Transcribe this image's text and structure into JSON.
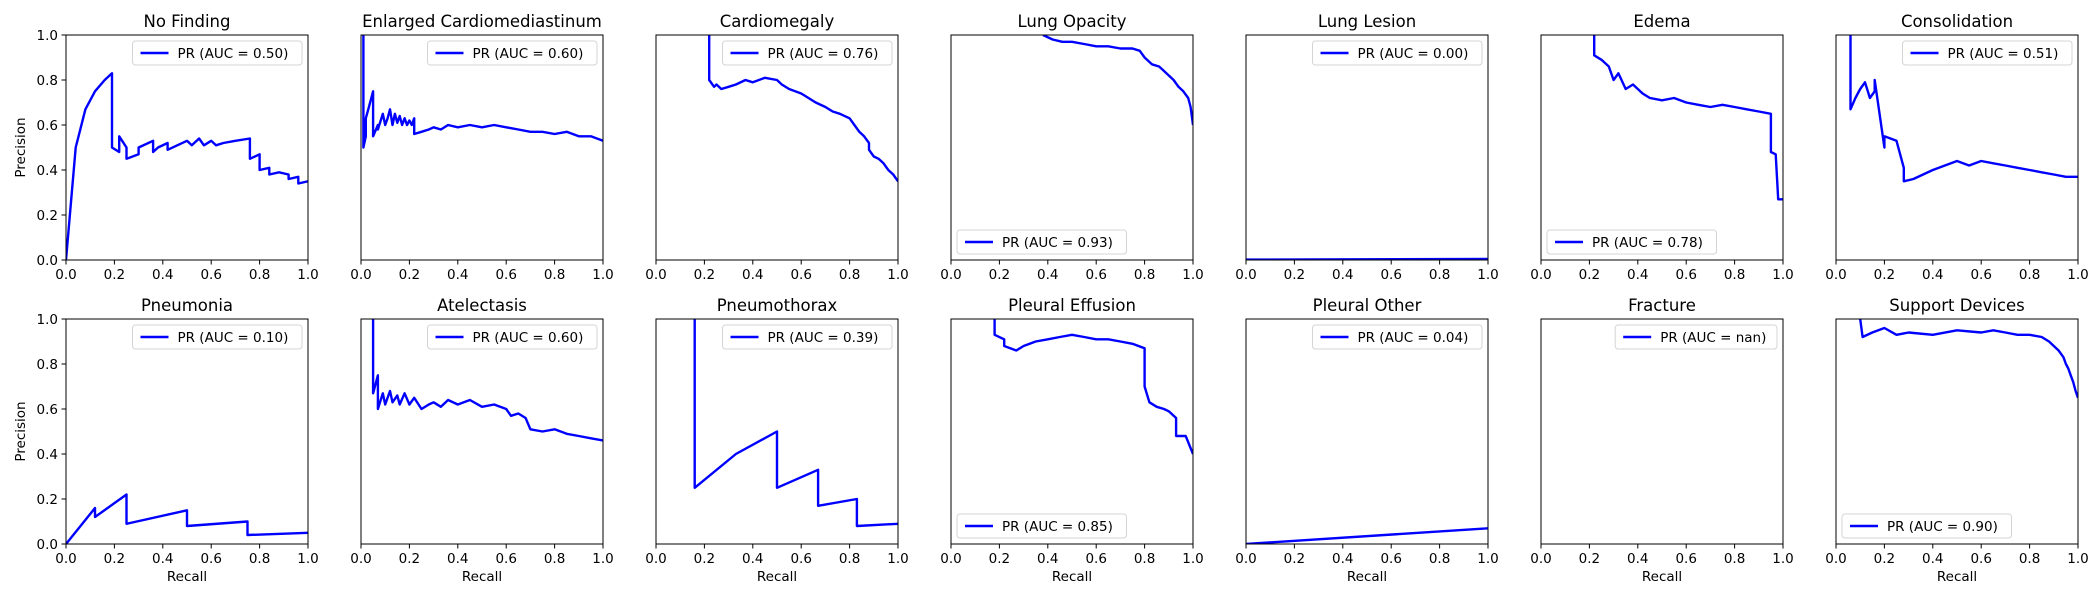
{
  "chart_data": [
    {
      "type": "line",
      "title": "No Finding",
      "xlabel": "",
      "ylabel": "Precision",
      "xlim": [
        0,
        1
      ],
      "ylim": [
        0,
        1
      ],
      "legend": "top-right",
      "series": [
        {
          "name": "PR (AUC = 0.50)",
          "x": [
            0,
            0.04,
            0.08,
            0.12,
            0.16,
            0.19,
            0.19,
            0.22,
            0.22,
            0.25,
            0.25,
            0.3,
            0.3,
            0.36,
            0.36,
            0.38,
            0.38,
            0.42,
            0.42,
            0.46,
            0.5,
            0.52,
            0.55,
            0.57,
            0.6,
            0.62,
            0.65,
            0.7,
            0.76,
            0.76,
            0.8,
            0.8,
            0.84,
            0.84,
            0.88,
            0.92,
            0.92,
            0.96,
            0.96,
            1.0
          ],
          "y": [
            0,
            0.5,
            0.67,
            0.75,
            0.8,
            0.83,
            0.5,
            0.48,
            0.55,
            0.5,
            0.45,
            0.47,
            0.5,
            0.53,
            0.48,
            0.5,
            0.5,
            0.52,
            0.49,
            0.51,
            0.53,
            0.51,
            0.54,
            0.51,
            0.53,
            0.51,
            0.52,
            0.53,
            0.54,
            0.45,
            0.47,
            0.4,
            0.41,
            0.38,
            0.39,
            0.38,
            0.36,
            0.37,
            0.34,
            0.35
          ]
        }
      ]
    },
    {
      "type": "line",
      "title": "Enlarged Cardiomediastinum",
      "xlabel": "",
      "ylabel": "",
      "xlim": [
        0,
        1
      ],
      "ylim": [
        0,
        1
      ],
      "legend": "top-right",
      "series": [
        {
          "name": "PR (AUC = 0.60)",
          "x": [
            0.01,
            0.01,
            0.02,
            0.02,
            0.03,
            0.05,
            0.05,
            0.07,
            0.07,
            0.09,
            0.1,
            0.11,
            0.12,
            0.13,
            0.14,
            0.15,
            0.16,
            0.17,
            0.18,
            0.19,
            0.2,
            0.21,
            0.22,
            0.22,
            0.25,
            0.28,
            0.3,
            0.33,
            0.36,
            0.4,
            0.45,
            0.5,
            0.55,
            0.6,
            0.65,
            0.7,
            0.75,
            0.8,
            0.85,
            0.9,
            0.95,
            1.0
          ],
          "y": [
            1.0,
            0.5,
            0.55,
            0.63,
            0.67,
            0.75,
            0.55,
            0.6,
            0.58,
            0.65,
            0.6,
            0.63,
            0.67,
            0.6,
            0.65,
            0.61,
            0.64,
            0.6,
            0.63,
            0.6,
            0.62,
            0.6,
            0.63,
            0.56,
            0.57,
            0.58,
            0.59,
            0.58,
            0.6,
            0.59,
            0.6,
            0.59,
            0.6,
            0.59,
            0.58,
            0.57,
            0.57,
            0.56,
            0.57,
            0.55,
            0.55,
            0.53
          ]
        }
      ]
    },
    {
      "type": "line",
      "title": "Cardiomegaly",
      "xlabel": "",
      "ylabel": "",
      "xlim": [
        0,
        1
      ],
      "ylim": [
        0,
        1
      ],
      "legend": "top-right",
      "series": [
        {
          "name": "PR (AUC = 0.76)",
          "x": [
            0.22,
            0.22,
            0.24,
            0.25,
            0.27,
            0.3,
            0.33,
            0.37,
            0.4,
            0.45,
            0.5,
            0.52,
            0.55,
            0.6,
            0.63,
            0.66,
            0.7,
            0.73,
            0.76,
            0.8,
            0.82,
            0.84,
            0.86,
            0.88,
            0.88,
            0.9,
            0.92,
            0.94,
            0.96,
            0.98,
            1.0
          ],
          "y": [
            1.0,
            0.8,
            0.77,
            0.78,
            0.76,
            0.77,
            0.78,
            0.8,
            0.79,
            0.81,
            0.8,
            0.78,
            0.76,
            0.74,
            0.72,
            0.7,
            0.68,
            0.66,
            0.65,
            0.63,
            0.6,
            0.57,
            0.55,
            0.52,
            0.49,
            0.46,
            0.45,
            0.43,
            0.4,
            0.38,
            0.35
          ]
        }
      ]
    },
    {
      "type": "line",
      "title": "Lung Opacity",
      "xlabel": "",
      "ylabel": "",
      "xlim": [
        0,
        1
      ],
      "ylim": [
        0,
        1
      ],
      "legend": "bottom-left",
      "series": [
        {
          "name": "PR (AUC = 0.93)",
          "x": [
            0.38,
            0.42,
            0.46,
            0.5,
            0.55,
            0.6,
            0.65,
            0.7,
            0.75,
            0.78,
            0.8,
            0.83,
            0.86,
            0.88,
            0.9,
            0.92,
            0.94,
            0.96,
            0.98,
            0.99,
            1.0
          ],
          "y": [
            1.0,
            0.98,
            0.97,
            0.97,
            0.96,
            0.95,
            0.95,
            0.94,
            0.94,
            0.93,
            0.9,
            0.87,
            0.86,
            0.84,
            0.82,
            0.8,
            0.77,
            0.75,
            0.72,
            0.68,
            0.6
          ]
        }
      ]
    },
    {
      "type": "line",
      "title": "Lung Lesion",
      "xlabel": "",
      "ylabel": "",
      "xlim": [
        0,
        1
      ],
      "ylim": [
        0,
        1
      ],
      "legend": "top-right",
      "series": [
        {
          "name": "PR (AUC = 0.00)",
          "x": [
            0,
            1
          ],
          "y": [
            0.002,
            0.005
          ]
        }
      ]
    },
    {
      "type": "line",
      "title": "Edema",
      "xlabel": "",
      "ylabel": "",
      "xlim": [
        0,
        1
      ],
      "ylim": [
        0,
        1
      ],
      "legend": "bottom-left",
      "series": [
        {
          "name": "PR (AUC = 0.78)",
          "x": [
            0.22,
            0.22,
            0.25,
            0.28,
            0.3,
            0.32,
            0.35,
            0.38,
            0.42,
            0.45,
            0.5,
            0.55,
            0.6,
            0.65,
            0.7,
            0.75,
            0.8,
            0.85,
            0.9,
            0.95,
            0.95,
            0.97,
            0.98,
            1.0
          ],
          "y": [
            1.0,
            0.91,
            0.89,
            0.86,
            0.8,
            0.83,
            0.76,
            0.78,
            0.74,
            0.72,
            0.71,
            0.72,
            0.7,
            0.69,
            0.68,
            0.69,
            0.68,
            0.67,
            0.66,
            0.65,
            0.48,
            0.47,
            0.27,
            0.27
          ]
        }
      ]
    },
    {
      "type": "line",
      "title": "Consolidation",
      "xlabel": "",
      "ylabel": "",
      "xlim": [
        0,
        1
      ],
      "ylim": [
        0,
        1
      ],
      "legend": "top-right",
      "series": [
        {
          "name": "PR (AUC = 0.51)",
          "x": [
            0.06,
            0.06,
            0.08,
            0.1,
            0.12,
            0.14,
            0.16,
            0.16,
            0.2,
            0.2,
            0.25,
            0.28,
            0.28,
            0.32,
            0.36,
            0.4,
            0.45,
            0.5,
            0.55,
            0.6,
            0.65,
            0.7,
            0.75,
            0.8,
            0.85,
            0.9,
            0.95,
            1.0
          ],
          "y": [
            1.0,
            0.67,
            0.72,
            0.76,
            0.79,
            0.72,
            0.75,
            0.8,
            0.5,
            0.55,
            0.53,
            0.41,
            0.35,
            0.36,
            0.38,
            0.4,
            0.42,
            0.44,
            0.42,
            0.44,
            0.43,
            0.42,
            0.41,
            0.4,
            0.39,
            0.38,
            0.37,
            0.37
          ]
        }
      ]
    },
    {
      "type": "line",
      "title": "Pneumonia",
      "xlabel": "Recall",
      "ylabel": "Precision",
      "xlim": [
        0,
        1
      ],
      "ylim": [
        0,
        1
      ],
      "legend": "top-right",
      "series": [
        {
          "name": "PR (AUC = 0.10)",
          "x": [
            0,
            0.12,
            0.12,
            0.25,
            0.25,
            0.5,
            0.5,
            0.75,
            0.75,
            1.0
          ],
          "y": [
            0,
            0.16,
            0.12,
            0.22,
            0.09,
            0.15,
            0.08,
            0.1,
            0.04,
            0.05
          ]
        }
      ]
    },
    {
      "type": "line",
      "title": "Atelectasis",
      "xlabel": "Recall",
      "ylabel": "",
      "xlim": [
        0,
        1
      ],
      "ylim": [
        0,
        1
      ],
      "legend": "top-right",
      "series": [
        {
          "name": "PR (AUC = 0.60)",
          "x": [
            0.05,
            0.05,
            0.07,
            0.07,
            0.09,
            0.1,
            0.12,
            0.13,
            0.15,
            0.16,
            0.18,
            0.2,
            0.22,
            0.25,
            0.28,
            0.3,
            0.33,
            0.36,
            0.4,
            0.45,
            0.5,
            0.55,
            0.6,
            0.62,
            0.65,
            0.68,
            0.7,
            0.75,
            0.8,
            0.85,
            0.9,
            0.95,
            1.0
          ],
          "y": [
            1.0,
            0.67,
            0.75,
            0.6,
            0.67,
            0.62,
            0.68,
            0.63,
            0.66,
            0.62,
            0.67,
            0.62,
            0.65,
            0.6,
            0.62,
            0.63,
            0.61,
            0.64,
            0.62,
            0.64,
            0.61,
            0.62,
            0.6,
            0.57,
            0.58,
            0.56,
            0.51,
            0.5,
            0.51,
            0.49,
            0.48,
            0.47,
            0.46
          ]
        }
      ]
    },
    {
      "type": "line",
      "title": "Pneumothorax",
      "xlabel": "Recall",
      "ylabel": "",
      "xlim": [
        0,
        1
      ],
      "ylim": [
        0,
        1
      ],
      "legend": "top-right",
      "series": [
        {
          "name": "PR (AUC = 0.39)",
          "x": [
            0.16,
            0.16,
            0.33,
            0.5,
            0.5,
            0.67,
            0.67,
            0.83,
            0.83,
            1.0
          ],
          "y": [
            1.0,
            0.25,
            0.4,
            0.5,
            0.25,
            0.33,
            0.17,
            0.2,
            0.08,
            0.09
          ]
        }
      ]
    },
    {
      "type": "line",
      "title": "Pleural Effusion",
      "xlabel": "Recall",
      "ylabel": "",
      "xlim": [
        0,
        1
      ],
      "ylim": [
        0,
        1
      ],
      "legend": "bottom-left",
      "series": [
        {
          "name": "PR (AUC = 0.85)",
          "x": [
            0.18,
            0.18,
            0.22,
            0.22,
            0.27,
            0.3,
            0.35,
            0.4,
            0.45,
            0.5,
            0.55,
            0.6,
            0.65,
            0.7,
            0.75,
            0.8,
            0.8,
            0.82,
            0.85,
            0.88,
            0.9,
            0.93,
            0.93,
            0.97,
            1.0
          ],
          "y": [
            1.0,
            0.93,
            0.91,
            0.88,
            0.86,
            0.88,
            0.9,
            0.91,
            0.92,
            0.93,
            0.92,
            0.91,
            0.91,
            0.9,
            0.89,
            0.87,
            0.7,
            0.63,
            0.61,
            0.6,
            0.59,
            0.56,
            0.48,
            0.48,
            0.4
          ]
        }
      ]
    },
    {
      "type": "line",
      "title": "Pleural Other",
      "xlabel": "Recall",
      "ylabel": "",
      "xlim": [
        0,
        1
      ],
      "ylim": [
        0,
        1
      ],
      "legend": "top-right",
      "series": [
        {
          "name": "PR (AUC = 0.04)",
          "x": [
            0,
            1
          ],
          "y": [
            0,
            0.07
          ]
        }
      ]
    },
    {
      "type": "line",
      "title": "Fracture",
      "xlabel": "Recall",
      "ylabel": "",
      "xlim": [
        0,
        1
      ],
      "ylim": [
        0,
        1
      ],
      "legend": "top-right",
      "series": [
        {
          "name": "PR (AUC = nan)",
          "x": [],
          "y": []
        }
      ]
    },
    {
      "type": "line",
      "title": "Support Devices",
      "xlabel": "Recall",
      "ylabel": "",
      "xlim": [
        0,
        1
      ],
      "ylim": [
        0,
        1
      ],
      "legend": "bottom-left",
      "series": [
        {
          "name": "PR (AUC = 0.90)",
          "x": [
            0.1,
            0.11,
            0.15,
            0.2,
            0.25,
            0.3,
            0.4,
            0.5,
            0.6,
            0.65,
            0.7,
            0.75,
            0.8,
            0.85,
            0.88,
            0.9,
            0.92,
            0.94,
            0.95,
            0.96,
            0.97,
            0.98,
            0.99,
            1.0
          ],
          "y": [
            1.0,
            0.92,
            0.94,
            0.96,
            0.93,
            0.94,
            0.93,
            0.95,
            0.94,
            0.95,
            0.94,
            0.93,
            0.93,
            0.92,
            0.9,
            0.88,
            0.86,
            0.83,
            0.8,
            0.78,
            0.75,
            0.72,
            0.68,
            0.65
          ]
        }
      ]
    }
  ]
}
